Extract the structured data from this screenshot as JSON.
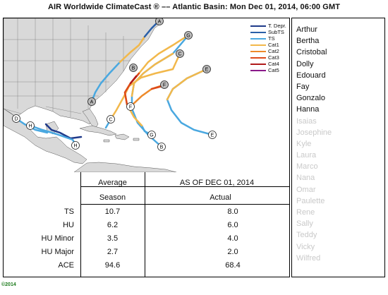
{
  "header": {
    "title": "AIR Worldwide ClimateCast ® –– Atlantic Basin:   Mon Dec 01, 2014,  06:00 GMT"
  },
  "legend": [
    {
      "label": "T. Depr.",
      "color": "#1f3a8a"
    },
    {
      "label": "SubTS",
      "color": "#2a5fa8"
    },
    {
      "label": "TS",
      "color": "#4aa8e0"
    },
    {
      "label": "Cat1",
      "color": "#f2b84b"
    },
    {
      "label": "Cat2",
      "color": "#ee8a2a"
    },
    {
      "label": "Cat3",
      "color": "#dd4a1a"
    },
    {
      "label": "Cat4",
      "color": "#b01a1a"
    },
    {
      "label": "Cat5",
      "color": "#8a1a8a"
    }
  ],
  "storm_markers": [
    "A",
    "B",
    "C",
    "D",
    "E",
    "F",
    "G",
    "H"
  ],
  "table": {
    "col1_header_line1": "Average",
    "col1_header_line2": "Season",
    "col2_header_line1": "AS OF  DEC 01, 2014",
    "col2_header_line2": "Actual",
    "rows": [
      {
        "label": "TS",
        "average": "10.7",
        "actual": "8.0"
      },
      {
        "label": "HU",
        "average": "6.2",
        "actual": "6.0"
      },
      {
        "label": "HU Minor",
        "average": "3.5",
        "actual": "4.0"
      },
      {
        "label": "HU Major",
        "average": "2.7",
        "actual": "2.0"
      },
      {
        "label": "ACE",
        "average": "94.6",
        "actual": "68.4"
      }
    ]
  },
  "names": [
    {
      "name": "Arthur",
      "used": true
    },
    {
      "name": "Bertha",
      "used": true
    },
    {
      "name": "Cristobal",
      "used": true
    },
    {
      "name": "Dolly",
      "used": true
    },
    {
      "name": "Edouard",
      "used": true
    },
    {
      "name": "Fay",
      "used": true
    },
    {
      "name": "Gonzalo",
      "used": true
    },
    {
      "name": "Hanna",
      "used": true
    },
    {
      "name": "Isaias",
      "used": false
    },
    {
      "name": "Josephine",
      "used": false
    },
    {
      "name": "Kyle",
      "used": false
    },
    {
      "name": "Laura",
      "used": false
    },
    {
      "name": "Marco",
      "used": false
    },
    {
      "name": "Nana",
      "used": false
    },
    {
      "name": "Omar",
      "used": false
    },
    {
      "name": "Paulette",
      "used": false
    },
    {
      "name": "Rene",
      "used": false
    },
    {
      "name": "Sally",
      "used": false
    },
    {
      "name": "Teddy",
      "used": false
    },
    {
      "name": "Vicky",
      "used": false
    },
    {
      "name": "Wilfred",
      "used": false
    }
  ],
  "footer": {
    "copyright": "©2014"
  }
}
